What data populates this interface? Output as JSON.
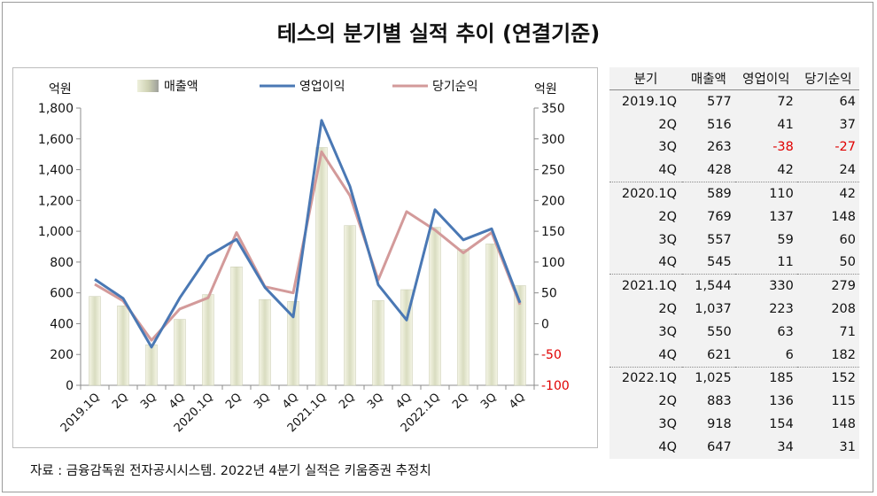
{
  "title": "테스의 분기별 실적 추이 (연결기준)",
  "source": "자료 : 금융감독원 전자공시시스템. 2022년 4분기 실적은 키움증권 추정치",
  "chart_data": {
    "type": "bar+line",
    "y_left_unit": "억원",
    "y_right_unit": "억원",
    "ylim_left": [
      0,
      1800
    ],
    "ylim_right": [
      -100,
      350
    ],
    "y_left_ticks": [
      "0",
      "200",
      "400",
      "600",
      "800",
      "1,000",
      "1,200",
      "1,400",
      "1,600",
      "1,800"
    ],
    "y_right_ticks": [
      "-100",
      "-50",
      "0",
      "50",
      "100",
      "150",
      "200",
      "250",
      "300",
      "350"
    ],
    "categories": [
      "2019.1Q",
      "2Q",
      "3Q",
      "4Q",
      "2020.1Q",
      "2Q",
      "3Q",
      "4Q",
      "2021.1Q",
      "2Q",
      "3Q",
      "4Q",
      "2022.1Q",
      "2Q",
      "3Q",
      "4Q"
    ],
    "series": [
      {
        "name": "매출액",
        "type": "bar",
        "axis": "left",
        "color": "#e4e8cf",
        "values": [
          577,
          516,
          263,
          428,
          589,
          769,
          557,
          545,
          1544,
          1037,
          550,
          621,
          1025,
          883,
          918,
          647
        ]
      },
      {
        "name": "영업이익",
        "type": "line",
        "axis": "right",
        "color": "#4a78b4",
        "values": [
          72,
          41,
          -38,
          42,
          110,
          137,
          59,
          11,
          330,
          223,
          63,
          6,
          185,
          136,
          154,
          34
        ]
      },
      {
        "name": "당기순익",
        "type": "line",
        "axis": "right",
        "color": "#d39a9a",
        "values": [
          64,
          37,
          -27,
          24,
          42,
          148,
          60,
          50,
          279,
          208,
          71,
          182,
          152,
          115,
          148,
          31
        ]
      }
    ]
  },
  "table": {
    "headers": [
      "분기",
      "매출액",
      "영업이익",
      "당기순익"
    ],
    "rows": [
      {
        "q": "2019.1Q",
        "sales": "577",
        "op": "72",
        "net": "64",
        "sep": false
      },
      {
        "q": "2Q",
        "sales": "516",
        "op": "41",
        "net": "37",
        "sep": false
      },
      {
        "q": "3Q",
        "sales": "263",
        "op": "-38",
        "net": "-27",
        "sep": false
      },
      {
        "q": "4Q",
        "sales": "428",
        "op": "42",
        "net": "24",
        "sep": false
      },
      {
        "q": "2020.1Q",
        "sales": "589",
        "op": "110",
        "net": "42",
        "sep": true
      },
      {
        "q": "2Q",
        "sales": "769",
        "op": "137",
        "net": "148",
        "sep": false
      },
      {
        "q": "3Q",
        "sales": "557",
        "op": "59",
        "net": "60",
        "sep": false
      },
      {
        "q": "4Q",
        "sales": "545",
        "op": "11",
        "net": "50",
        "sep": false
      },
      {
        "q": "2021.1Q",
        "sales": "1,544",
        "op": "330",
        "net": "279",
        "sep": true
      },
      {
        "q": "2Q",
        "sales": "1,037",
        "op": "223",
        "net": "208",
        "sep": false
      },
      {
        "q": "3Q",
        "sales": "550",
        "op": "63",
        "net": "71",
        "sep": false
      },
      {
        "q": "4Q",
        "sales": "621",
        "op": "6",
        "net": "182",
        "sep": false
      },
      {
        "q": "2022.1Q",
        "sales": "1,025",
        "op": "185",
        "net": "152",
        "sep": true
      },
      {
        "q": "2Q",
        "sales": "883",
        "op": "136",
        "net": "115",
        "sep": false
      },
      {
        "q": "3Q",
        "sales": "918",
        "op": "154",
        "net": "148",
        "sep": false
      },
      {
        "q": "4Q",
        "sales": "647",
        "op": "34",
        "net": "31",
        "sep": false
      }
    ]
  },
  "colors": {
    "negative": "#e00000",
    "axis": "#8c8c8c"
  }
}
